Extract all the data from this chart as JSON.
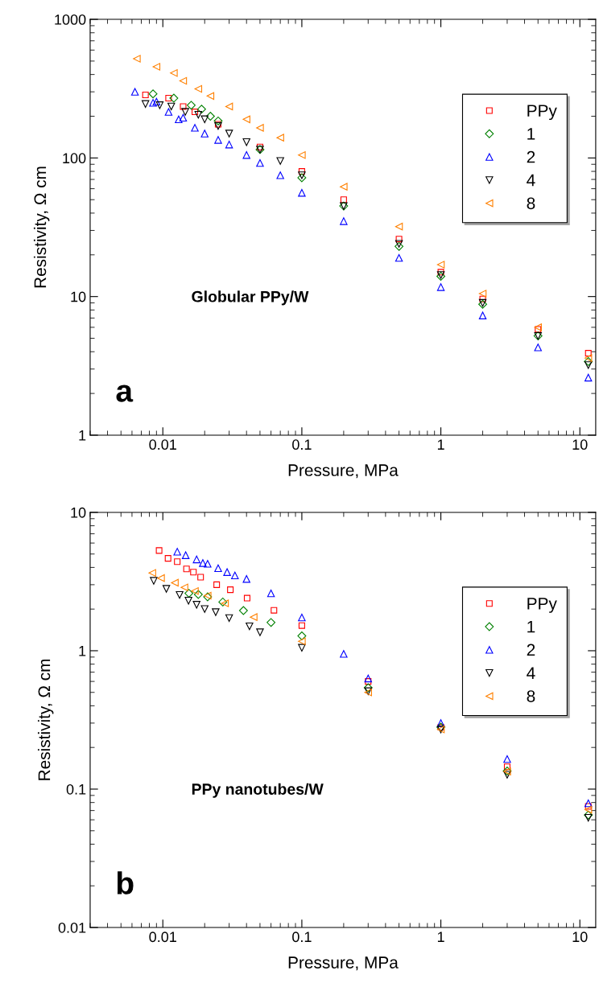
{
  "chart_data": [
    {
      "type": "scatter",
      "xlabel": "Pressure, MPa",
      "ylabel": "Resistivity, Ω cm",
      "log": "xy",
      "xlim": [
        0.003,
        13
      ],
      "ylim": [
        1,
        1000
      ],
      "xticks": [
        0.01,
        0.1,
        1,
        10
      ],
      "yticks": [
        1,
        10,
        100,
        1000
      ],
      "grid": false,
      "legend": "top right",
      "annotations": [
        "Globular PPy/W",
        "a"
      ],
      "series": [
        {
          "name": "PPy",
          "color": "#ff0000",
          "marker": "square",
          "x": [
            0.0075,
            0.011,
            0.014,
            0.017,
            0.025,
            0.05,
            0.1,
            0.2,
            0.5,
            1,
            2,
            5,
            11.5
          ],
          "values": [
            285,
            270,
            235,
            215,
            175,
            120,
            80,
            50,
            26,
            15,
            9.6,
            5.8,
            3.9
          ]
        },
        {
          "name": "1",
          "color": "#008000",
          "marker": "diamond",
          "x": [
            0.0085,
            0.012,
            0.016,
            0.019,
            0.022,
            0.025,
            0.05,
            0.1,
            0.2,
            0.5,
            1,
            2,
            5,
            11.5
          ],
          "values": [
            290,
            270,
            240,
            225,
            200,
            185,
            115,
            72,
            45,
            23,
            14,
            8.8,
            5.2,
            3.4
          ]
        },
        {
          "name": "2",
          "color": "#0000ff",
          "marker": "triangle",
          "x": [
            0.0063,
            0.0085,
            0.009,
            0.011,
            0.013,
            0.014,
            0.017,
            0.02,
            0.025,
            0.03,
            0.04,
            0.05,
            0.07,
            0.1,
            0.2,
            0.5,
            1,
            2,
            5,
            11.5
          ],
          "values": [
            300,
            250,
            255,
            215,
            190,
            195,
            165,
            150,
            135,
            125,
            105,
            92,
            75,
            56,
            35,
            19,
            11.7,
            7.3,
            4.3,
            2.6
          ]
        },
        {
          "name": "4",
          "color": "#000000",
          "marker": "triangle-down",
          "x": [
            0.0075,
            0.0095,
            0.0115,
            0.0145,
            0.018,
            0.02,
            0.025,
            0.03,
            0.04,
            0.05,
            0.07,
            0.1,
            0.2,
            0.5,
            1,
            2,
            5,
            11.5
          ],
          "values": [
            245,
            240,
            235,
            215,
            205,
            190,
            170,
            150,
            130,
            115,
            95,
            75,
            45,
            24,
            14.3,
            9,
            5.2,
            3.2
          ]
        },
        {
          "name": "8",
          "color": "#ff8000",
          "marker": "triangle-left",
          "x": [
            0.0065,
            0.009,
            0.012,
            0.014,
            0.018,
            0.022,
            0.03,
            0.04,
            0.05,
            0.07,
            0.1,
            0.2,
            0.5,
            1,
            2,
            5,
            11.5
          ],
          "values": [
            520,
            455,
            410,
            360,
            315,
            280,
            235,
            190,
            165,
            140,
            105,
            62,
            32,
            17,
            10.5,
            6,
            3.6
          ]
        }
      ]
    },
    {
      "type": "scatter",
      "xlabel": "Pressure, MPa",
      "ylabel": "Resistivity, Ω cm",
      "log": "xy",
      "xlim": [
        0.003,
        13
      ],
      "ylim": [
        0.01,
        10
      ],
      "xticks": [
        0.01,
        0.1,
        1,
        10
      ],
      "yticks": [
        0.01,
        0.1,
        1,
        10
      ],
      "grid": false,
      "legend": "top right",
      "annotations": [
        "PPy nanotubes/W",
        "b"
      ],
      "series": [
        {
          "name": "PPy",
          "color": "#ff0000",
          "marker": "square",
          "x": [
            0.0094,
            0.0109,
            0.0127,
            0.0148,
            0.0166,
            0.0187,
            0.0244,
            0.0306,
            0.0404,
            0.063,
            0.1,
            0.3,
            1,
            3,
            11.5
          ],
          "values": [
            5.3,
            4.65,
            4.4,
            3.9,
            3.7,
            3.4,
            3.0,
            2.76,
            2.4,
            1.96,
            1.52,
            0.6,
            0.28,
            0.145,
            0.075
          ]
        },
        {
          "name": "1",
          "color": "#008000",
          "marker": "diamond",
          "x": [
            0.0154,
            0.018,
            0.021,
            0.027,
            0.038,
            0.06,
            0.1,
            0.3,
            1,
            3,
            11.5
          ],
          "values": [
            2.6,
            2.55,
            2.45,
            2.25,
            1.95,
            1.6,
            1.28,
            0.54,
            0.28,
            0.135,
            0.065
          ]
        },
        {
          "name": "2",
          "color": "#0000ff",
          "marker": "triangle",
          "x": [
            0.0127,
            0.0146,
            0.0175,
            0.0194,
            0.021,
            0.025,
            0.029,
            0.033,
            0.04,
            0.06,
            0.1,
            0.2,
            0.3,
            1,
            3,
            11.5
          ],
          "values": [
            5.2,
            4.9,
            4.57,
            4.3,
            4.25,
            3.95,
            3.7,
            3.5,
            3.3,
            2.6,
            1.74,
            0.95,
            0.63,
            0.3,
            0.165,
            0.079
          ]
        },
        {
          "name": "4",
          "color": "#000000",
          "marker": "triangle-down",
          "x": [
            0.0086,
            0.0106,
            0.0132,
            0.0153,
            0.0175,
            0.02,
            0.024,
            0.03,
            0.042,
            0.05,
            0.1,
            0.3,
            1,
            3,
            11.5
          ],
          "values": [
            3.2,
            2.8,
            2.53,
            2.3,
            2.15,
            2.0,
            1.9,
            1.72,
            1.5,
            1.36,
            1.05,
            0.51,
            0.27,
            0.127,
            0.062
          ]
        },
        {
          "name": "8",
          "color": "#ff8000",
          "marker": "triangle-left",
          "x": [
            0.0084,
            0.0097,
            0.0122,
            0.0143,
            0.017,
            0.021,
            0.028,
            0.045,
            0.1,
            0.3,
            1,
            3,
            11.5
          ],
          "values": [
            3.65,
            3.35,
            3.1,
            2.87,
            2.7,
            2.5,
            2.2,
            1.75,
            1.17,
            0.5,
            0.27,
            0.134,
            0.071
          ]
        }
      ]
    }
  ]
}
